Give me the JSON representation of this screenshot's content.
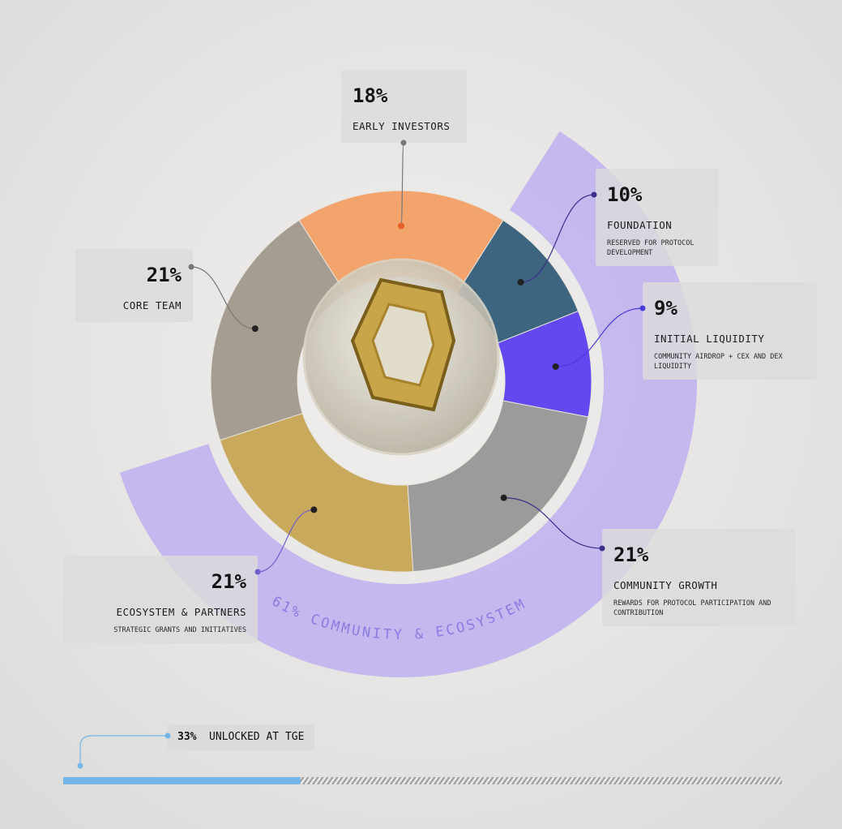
{
  "chart_data": {
    "type": "donut",
    "categories": [
      "EARLY INVESTORS",
      "FOUNDATION",
      "INITIAL LIQUIDITY",
      "COMMUNITY GROWTH",
      "ECOSYSTEM & PARTNERS",
      "CORE TEAM"
    ],
    "values": [
      18,
      10,
      9,
      21,
      21,
      21
    ],
    "value_labels": [
      "18%",
      "10%",
      "9%",
      "21%",
      "21%",
      "21%"
    ],
    "descriptions": [
      null,
      "RESERVED FOR PROTOCOL DEVELOPMENT",
      "COMMUNITY AIRDROP + CEX AND DEX LIQUIDITY",
      "REWARDS FOR PROTOCOL PARTICIPATION AND CONTRIBUTION",
      "STRATEGIC GRANTS AND INITIATIVES",
      null
    ],
    "colors": [
      "#f2a46c",
      "#3d6580",
      "#6248ee",
      "#9b9b9b",
      "#c9a95c",
      "#a59d92"
    ],
    "group": {
      "value": 61,
      "label": "61% COMMUNITY & ECOSYSTEM",
      "color": "#b9a8f2"
    },
    "progress": {
      "value": 33,
      "value_label": "33%",
      "label": "UNLOCKED AT TGE",
      "color": "#74b6ea"
    }
  }
}
